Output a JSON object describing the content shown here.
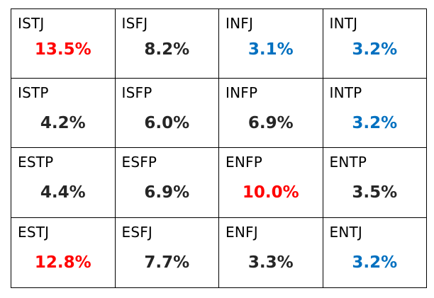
{
  "colors": {
    "normal": "#262626",
    "high": "#ff0000",
    "low": "#0070c0"
  },
  "rows": [
    [
      {
        "type": "ISTJ",
        "percent": "13.5%",
        "highlight": "high"
      },
      {
        "type": "ISFJ",
        "percent": "8.2%",
        "highlight": "normal"
      },
      {
        "type": "INFJ",
        "percent": "3.1%",
        "highlight": "low"
      },
      {
        "type": "INTJ",
        "percent": "3.2%",
        "highlight": "low"
      }
    ],
    [
      {
        "type": "ISTP",
        "percent": "4.2%",
        "highlight": "normal"
      },
      {
        "type": "ISFP",
        "percent": "6.0%",
        "highlight": "normal"
      },
      {
        "type": "INFP",
        "percent": "6.9%",
        "highlight": "normal"
      },
      {
        "type": "INTP",
        "percent": "3.2%",
        "highlight": "low"
      }
    ],
    [
      {
        "type": "ESTP",
        "percent": "4.4%",
        "highlight": "normal"
      },
      {
        "type": "ESFP",
        "percent": "6.9%",
        "highlight": "normal"
      },
      {
        "type": "ENFP",
        "percent": "10.0%",
        "highlight": "high"
      },
      {
        "type": "ENTP",
        "percent": "3.5%",
        "highlight": "normal"
      }
    ],
    [
      {
        "type": "ESTJ",
        "percent": "12.8%",
        "highlight": "high"
      },
      {
        "type": "ESFJ",
        "percent": "7.7%",
        "highlight": "normal"
      },
      {
        "type": "ENFJ",
        "percent": "3.3%",
        "highlight": "normal"
      },
      {
        "type": "ENTJ",
        "percent": "3.2%",
        "highlight": "low"
      }
    ]
  ]
}
